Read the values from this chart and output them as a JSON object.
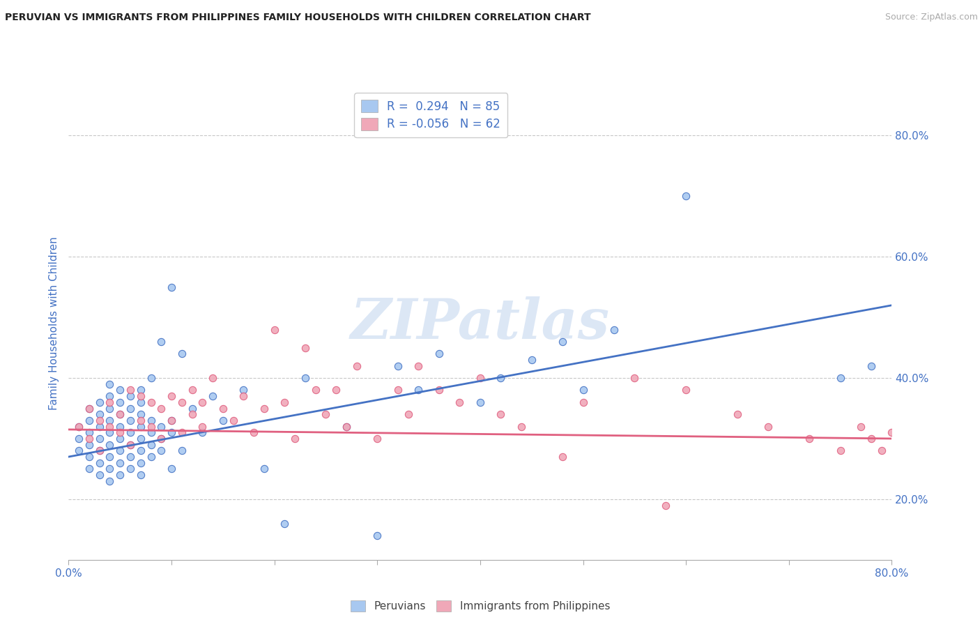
{
  "title": "PERUVIAN VS IMMIGRANTS FROM PHILIPPINES FAMILY HOUSEHOLDS WITH CHILDREN CORRELATION CHART",
  "source": "Source: ZipAtlas.com",
  "ylabel": "Family Households with Children",
  "xlim": [
    0.0,
    0.8
  ],
  "ylim": [
    0.1,
    0.88
  ],
  "xticks": [
    0.0,
    0.1,
    0.2,
    0.3,
    0.4,
    0.5,
    0.6,
    0.7,
    0.8
  ],
  "xticklabels": [
    "0.0%",
    "",
    "",
    "",
    "",
    "",
    "",
    "",
    "80.0%"
  ],
  "yticks": [
    0.2,
    0.4,
    0.6,
    0.8
  ],
  "yticklabels": [
    "20.0%",
    "40.0%",
    "60.0%",
    "80.0%"
  ],
  "legend_r1": "R =  0.294",
  "legend_n1": "N = 85",
  "legend_r2": "R = -0.056",
  "legend_n2": "N = 62",
  "color_peru": "#a8c8f0",
  "color_phil": "#f0a8b8",
  "color_peru_line": "#4472c4",
  "color_phil_line": "#e06080",
  "color_text_blue": "#4472c4",
  "watermark": "ZIPatlas",
  "grid_color": "#c8c8c8",
  "background": "#ffffff",
  "peru_trend_x0": 0.0,
  "peru_trend_y0": 0.27,
  "peru_trend_x1": 0.8,
  "peru_trend_y1": 0.52,
  "phil_trend_x0": 0.0,
  "phil_trend_y0": 0.315,
  "phil_trend_x1": 0.8,
  "phil_trend_y1": 0.3,
  "peru_scatter_x": [
    0.01,
    0.01,
    0.01,
    0.02,
    0.02,
    0.02,
    0.02,
    0.02,
    0.02,
    0.03,
    0.03,
    0.03,
    0.03,
    0.03,
    0.03,
    0.03,
    0.04,
    0.04,
    0.04,
    0.04,
    0.04,
    0.04,
    0.04,
    0.04,
    0.04,
    0.05,
    0.05,
    0.05,
    0.05,
    0.05,
    0.05,
    0.05,
    0.05,
    0.06,
    0.06,
    0.06,
    0.06,
    0.06,
    0.06,
    0.06,
    0.07,
    0.07,
    0.07,
    0.07,
    0.07,
    0.07,
    0.07,
    0.07,
    0.08,
    0.08,
    0.08,
    0.08,
    0.08,
    0.09,
    0.09,
    0.09,
    0.09,
    0.1,
    0.1,
    0.1,
    0.1,
    0.11,
    0.11,
    0.12,
    0.13,
    0.14,
    0.15,
    0.17,
    0.19,
    0.21,
    0.23,
    0.27,
    0.3,
    0.32,
    0.34,
    0.36,
    0.4,
    0.42,
    0.45,
    0.48,
    0.5,
    0.53,
    0.6,
    0.75,
    0.78
  ],
  "peru_scatter_y": [
    0.3,
    0.32,
    0.28,
    0.29,
    0.31,
    0.33,
    0.27,
    0.35,
    0.25,
    0.3,
    0.32,
    0.28,
    0.34,
    0.26,
    0.36,
    0.24,
    0.31,
    0.29,
    0.33,
    0.27,
    0.35,
    0.25,
    0.37,
    0.23,
    0.39,
    0.3,
    0.32,
    0.28,
    0.34,
    0.26,
    0.36,
    0.24,
    0.38,
    0.31,
    0.29,
    0.33,
    0.27,
    0.35,
    0.25,
    0.37,
    0.3,
    0.32,
    0.28,
    0.34,
    0.26,
    0.36,
    0.24,
    0.38,
    0.31,
    0.29,
    0.33,
    0.27,
    0.4,
    0.3,
    0.32,
    0.28,
    0.46,
    0.31,
    0.33,
    0.55,
    0.25,
    0.44,
    0.28,
    0.35,
    0.31,
    0.37,
    0.33,
    0.38,
    0.25,
    0.16,
    0.4,
    0.32,
    0.14,
    0.42,
    0.38,
    0.44,
    0.36,
    0.4,
    0.43,
    0.46,
    0.38,
    0.48,
    0.7,
    0.4,
    0.42
  ],
  "phil_scatter_x": [
    0.01,
    0.02,
    0.02,
    0.03,
    0.03,
    0.04,
    0.04,
    0.05,
    0.05,
    0.06,
    0.06,
    0.07,
    0.07,
    0.08,
    0.08,
    0.09,
    0.09,
    0.1,
    0.1,
    0.11,
    0.11,
    0.12,
    0.12,
    0.13,
    0.13,
    0.14,
    0.15,
    0.16,
    0.17,
    0.18,
    0.19,
    0.2,
    0.21,
    0.22,
    0.23,
    0.24,
    0.25,
    0.26,
    0.27,
    0.28,
    0.3,
    0.32,
    0.33,
    0.34,
    0.36,
    0.38,
    0.4,
    0.42,
    0.44,
    0.48,
    0.5,
    0.55,
    0.58,
    0.6,
    0.65,
    0.68,
    0.72,
    0.75,
    0.77,
    0.78,
    0.79,
    0.8
  ],
  "phil_scatter_y": [
    0.32,
    0.35,
    0.3,
    0.33,
    0.28,
    0.32,
    0.36,
    0.31,
    0.34,
    0.38,
    0.29,
    0.33,
    0.37,
    0.32,
    0.36,
    0.3,
    0.35,
    0.33,
    0.37,
    0.31,
    0.36,
    0.34,
    0.38,
    0.32,
    0.36,
    0.4,
    0.35,
    0.33,
    0.37,
    0.31,
    0.35,
    0.48,
    0.36,
    0.3,
    0.45,
    0.38,
    0.34,
    0.38,
    0.32,
    0.42,
    0.3,
    0.38,
    0.34,
    0.42,
    0.38,
    0.36,
    0.4,
    0.34,
    0.32,
    0.27,
    0.36,
    0.4,
    0.19,
    0.38,
    0.34,
    0.32,
    0.3,
    0.28,
    0.32,
    0.3,
    0.28,
    0.31
  ]
}
